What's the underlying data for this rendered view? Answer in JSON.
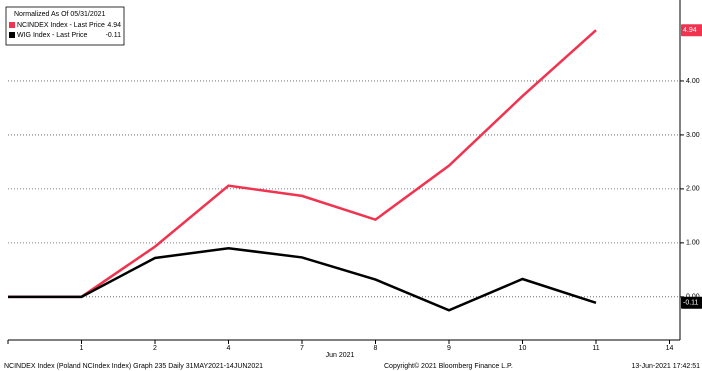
{
  "chart_data": {
    "type": "line",
    "legend_title": "Normalized As Of 05/31/2021",
    "categories": [
      null,
      "1",
      "2",
      "4",
      "7",
      "8",
      "9",
      "10",
      "11",
      "14"
    ],
    "x_annotation": "Jun 2021",
    "series": [
      {
        "name": "NCINDEX Index - Last Price",
        "color": "#f0334f",
        "values": [
          0,
          0,
          0.93,
          2.06,
          1.87,
          1.43,
          2.43,
          3.72,
          4.94,
          null
        ]
      },
      {
        "name": "WIG Index - Last Price",
        "color": "#000000",
        "values": [
          0,
          0,
          0.72,
          0.9,
          0.73,
          0.32,
          -0.25,
          0.33,
          -0.11,
          null
        ]
      }
    ],
    "ylim": [
      -0.8,
      5.5
    ],
    "yticks": [
      {
        "value": 0,
        "label": "0.00"
      },
      {
        "value": 1,
        "label": "1.00"
      },
      {
        "value": 2,
        "label": "2.00"
      },
      {
        "value": 3,
        "label": "3.00"
      },
      {
        "value": 4,
        "label": "4.00"
      }
    ],
    "grid": true,
    "footer": [
      "NCINDEX Index (Poland NCIndex Index) Graph 235  Daily 31MAY2021-14JUN2021",
      "Copyright© 2021 Bloomberg Finance L.P.",
      "13-Jun-2021 17:42:51"
    ]
  }
}
